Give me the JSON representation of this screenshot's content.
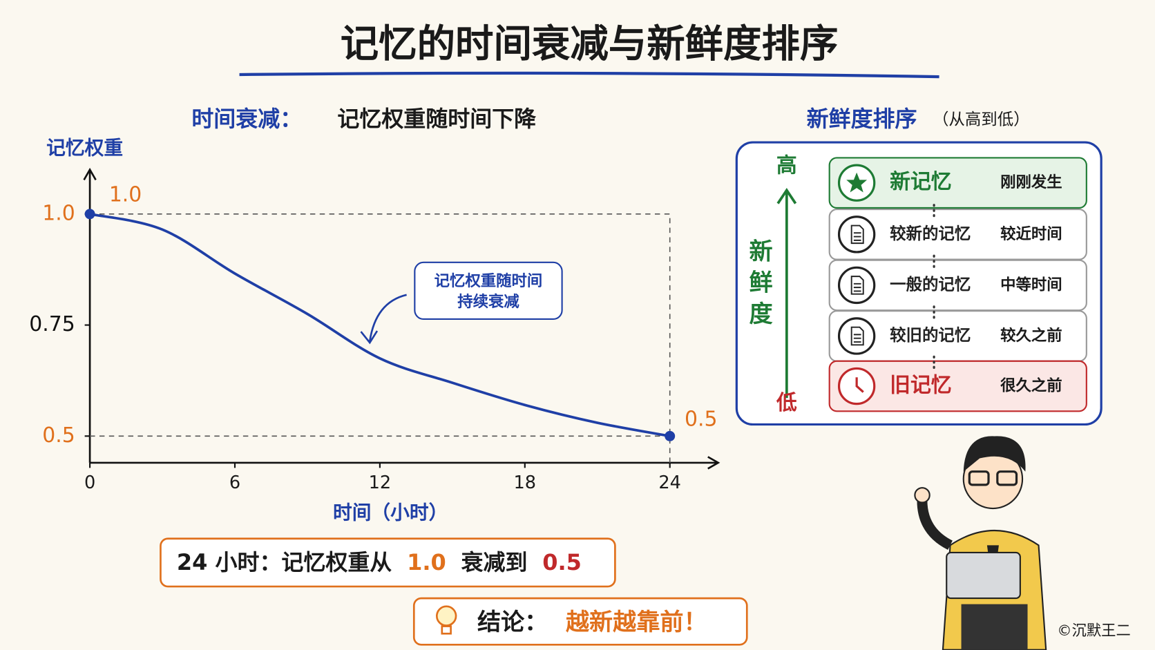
{
  "title": "记忆的时间衰减与新鲜度排序",
  "chart_data": {
    "type": "line",
    "title": "时间衰减：",
    "subtitle": "记忆权重随时间下降",
    "y_label": "记忆权重",
    "x_label": "时间（小时）",
    "x": [
      0,
      3,
      6,
      9,
      12,
      15,
      18,
      21,
      24
    ],
    "values": [
      1,
      0.965,
      0.866,
      0.775,
      0.675,
      0.62,
      0.57,
      0.53,
      0.5
    ],
    "value_labels": [
      "1.0",
      null,
      null,
      null,
      null,
      null,
      null,
      null,
      "0.5"
    ],
    "color": "#1f3fa6",
    "label_color": "#e0701c",
    "xlim": [
      0,
      26
    ],
    "xticks": [
      0,
      6,
      12,
      18,
      24
    ],
    "ylim": [
      0.44,
      1.1
    ],
    "yticks": [
      0.5,
      0.75,
      {
        "value": 1,
        "label": "1.0"
      }
    ],
    "annotation": [
      "记忆权重随时间",
      "持续衰减"
    ]
  },
  "summary": [
    "24 小时：记忆权重从",
    "1.0",
    "衰减到",
    "0.5"
  ],
  "conclusion": {
    "label": "结论：",
    "text": "越新越靠前！"
  },
  "ranking": {
    "title": "新鲜度排序",
    "note": "（从高到低）",
    "high": "高",
    "axis_label": [
      "新",
      "鲜",
      "度"
    ],
    "low": "低",
    "items": [
      {
        "name": "新记忆",
        "time": "刚刚发生",
        "color": "#1e7b34"
      },
      {
        "name": "较新的记忆",
        "time": "较近时间",
        "color": "#222222"
      },
      {
        "name": "一般的记忆",
        "time": "中等时间",
        "color": "#222222"
      },
      {
        "name": "较旧的记忆",
        "time": "较久之前",
        "color": "#222222"
      },
      {
        "name": "旧记忆",
        "time": "很久之前",
        "color": "#c0292b"
      }
    ]
  },
  "credit": "©沉默王二"
}
